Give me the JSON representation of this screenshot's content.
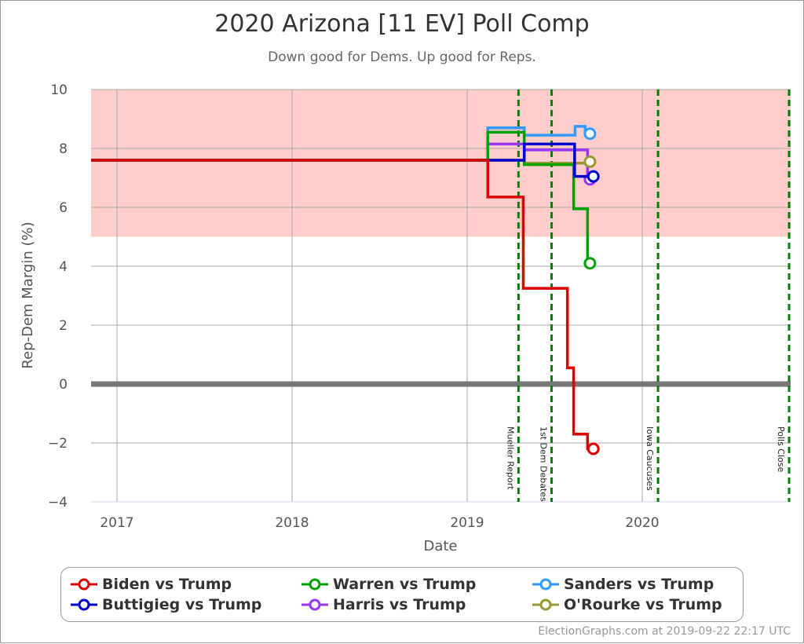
{
  "title": "2020 Arizona [11 EV] Poll Comp",
  "subtitle": "Down good for Dems. Up good for Reps.",
  "credit": "ElectionGraphs.com at 2019-09-22 22:17 UTC",
  "chart_data": {
    "type": "line",
    "xlabel": "Date",
    "ylabel": "Rep-Dem Margin (%)",
    "xlim": [
      "2016-11-08",
      "2020-11-03"
    ],
    "ylim": [
      -4,
      10
    ],
    "xticks": [
      "2017",
      "2018",
      "2019",
      "2020"
    ],
    "yticks": [
      -4,
      -2,
      0,
      2,
      4,
      6,
      8,
      10
    ],
    "grid": true,
    "shaded_band": {
      "from": 5,
      "to": 10,
      "color": "#ffcccc"
    },
    "zero_line_color": "#777777",
    "events": [
      {
        "label": "Mueller Report",
        "date": "2019-04-18"
      },
      {
        "label": "1st Dem Debates",
        "date": "2019-06-26"
      },
      {
        "label": "Iowa Caucuses",
        "date": "2020-02-03"
      },
      {
        "label": "Polls Close",
        "date": "2020-11-03"
      }
    ],
    "legend_position": "bottom",
    "series": [
      {
        "name": "Biden vs Trump",
        "color": "#dd0000",
        "steps": [
          [
            "2016-11-08",
            7.6
          ],
          [
            "2019-02-13",
            6.35
          ],
          [
            "2019-04-28",
            3.25
          ],
          [
            "2019-07-29",
            0.55
          ],
          [
            "2019-08-11",
            -1.7
          ],
          [
            "2019-09-09",
            -2.2
          ]
        ],
        "end": "2019-09-21"
      },
      {
        "name": "Buttigieg vs Trump",
        "color": "#0000cc",
        "steps": [
          [
            "2016-11-08",
            7.6
          ],
          [
            "2019-04-30",
            8.15
          ],
          [
            "2019-08-13",
            7.05
          ]
        ],
        "end": "2019-09-21"
      },
      {
        "name": "Warren vs Trump",
        "color": "#00a000",
        "steps": [
          [
            "2016-11-08",
            7.6
          ],
          [
            "2019-02-13",
            8.55
          ],
          [
            "2019-04-30",
            7.45
          ],
          [
            "2019-08-11",
            5.95
          ],
          [
            "2019-09-09",
            4.1
          ]
        ],
        "end": "2019-09-14"
      },
      {
        "name": "Harris vs Trump",
        "color": "#9933ff",
        "steps": [
          [
            "2016-11-08",
            7.6
          ],
          [
            "2019-02-13",
            8.15
          ],
          [
            "2019-04-30",
            7.95
          ],
          [
            "2019-09-09",
            6.95
          ]
        ],
        "end": "2019-09-14"
      },
      {
        "name": "Sanders vs Trump",
        "color": "#3399ff",
        "steps": [
          [
            "2016-11-08",
            7.6
          ],
          [
            "2019-02-13",
            8.7
          ],
          [
            "2019-04-30",
            8.45
          ],
          [
            "2019-08-14",
            8.75
          ],
          [
            "2019-09-04",
            8.5
          ]
        ],
        "end": "2019-09-14"
      },
      {
        "name": "O'Rourke vs Trump",
        "color": "#999933",
        "steps": [
          [
            "2016-11-08",
            7.6
          ],
          [
            "2019-04-30",
            7.5
          ],
          [
            "2019-09-12",
            7.55
          ]
        ],
        "end": "2019-09-14"
      }
    ]
  }
}
